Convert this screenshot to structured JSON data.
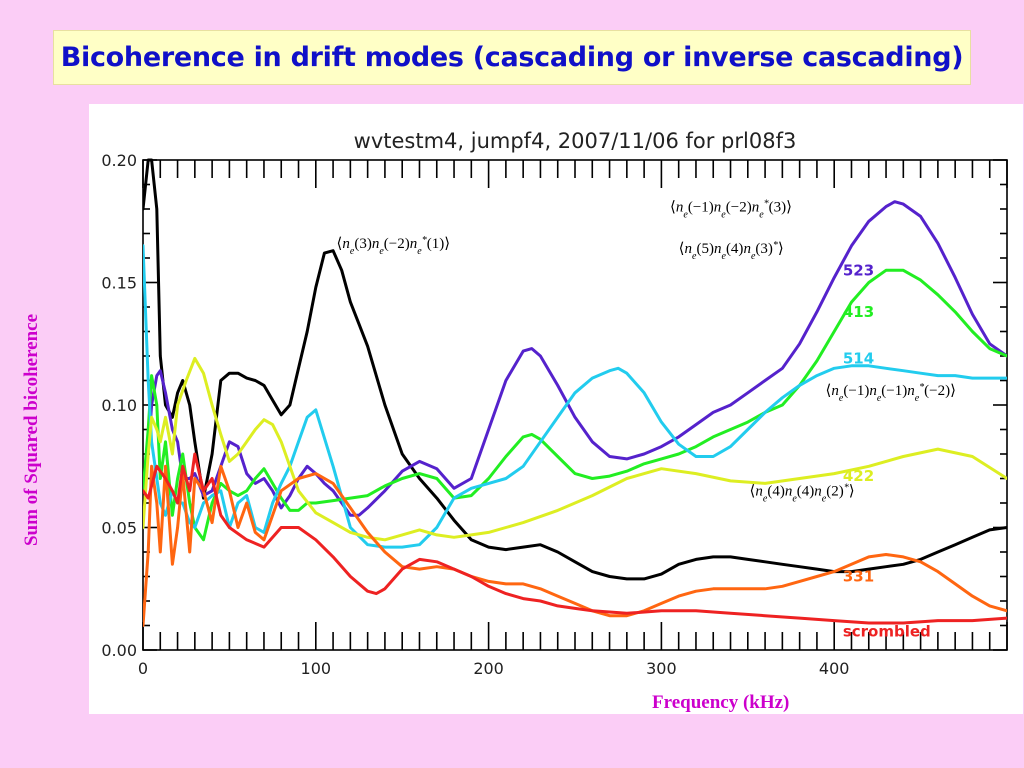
{
  "slide": {
    "title": "Bicoherence in drift modes (cascading or inverse cascading)",
    "ylabel": "Sum of Squared bicoherence",
    "xlabel": "Frequency (kHz)"
  },
  "chart_data": {
    "type": "line",
    "title": "wvtestm4, jumpf4, 2007/11/06 for prl08f3",
    "xlim": [
      0,
      500
    ],
    "ylim": [
      0,
      0.2
    ],
    "xticks": [
      "0",
      "100",
      "200",
      "300",
      "400"
    ],
    "yticks": [
      "0.00",
      "0.05",
      "0.10",
      "0.15",
      "0.20"
    ],
    "grid": false,
    "series": [
      {
        "name": "",
        "color": "#000000",
        "x": [
          0,
          3,
          5,
          8,
          10,
          13,
          17,
          20,
          23,
          27,
          30,
          35,
          40,
          45,
          50,
          55,
          60,
          65,
          70,
          75,
          80,
          85,
          90,
          95,
          100,
          105,
          110,
          115,
          120,
          125,
          130,
          140,
          150,
          160,
          170,
          180,
          190,
          200,
          210,
          220,
          230,
          240,
          250,
          260,
          270,
          280,
          290,
          300,
          310,
          320,
          330,
          340,
          350,
          360,
          370,
          380,
          390,
          400,
          410,
          420,
          430,
          440,
          450,
          460,
          470,
          480,
          490,
          500
        ],
        "y": [
          0.18,
          0.2,
          0.2,
          0.18,
          0.12,
          0.1,
          0.095,
          0.105,
          0.11,
          0.1,
          0.085,
          0.062,
          0.08,
          0.11,
          0.113,
          0.113,
          0.111,
          0.11,
          0.108,
          0.102,
          0.096,
          0.1,
          0.115,
          0.13,
          0.148,
          0.162,
          0.163,
          0.155,
          0.142,
          0.133,
          0.124,
          0.1,
          0.08,
          0.07,
          0.062,
          0.053,
          0.045,
          0.042,
          0.041,
          0.042,
          0.043,
          0.04,
          0.036,
          0.032,
          0.03,
          0.029,
          0.029,
          0.031,
          0.035,
          0.037,
          0.038,
          0.038,
          0.037,
          0.036,
          0.035,
          0.034,
          0.033,
          0.032,
          0.032,
          0.033,
          0.034,
          0.035,
          0.037,
          0.04,
          0.043,
          0.046,
          0.049,
          0.05
        ]
      },
      {
        "name": "523",
        "color": "#5522CC",
        "x": [
          0,
          3,
          5,
          8,
          10,
          13,
          17,
          20,
          23,
          27,
          30,
          35,
          40,
          45,
          50,
          55,
          60,
          65,
          70,
          75,
          80,
          85,
          90,
          95,
          100,
          105,
          110,
          115,
          120,
          125,
          130,
          140,
          150,
          160,
          170,
          180,
          190,
          200,
          210,
          220,
          225,
          230,
          240,
          250,
          260,
          270,
          280,
          290,
          300,
          310,
          320,
          330,
          340,
          350,
          360,
          370,
          380,
          390,
          400,
          410,
          420,
          430,
          435,
          440,
          450,
          460,
          470,
          480,
          490,
          500
        ],
        "y": [
          0.065,
          0.08,
          0.1,
          0.112,
          0.114,
          0.105,
          0.09,
          0.085,
          0.07,
          0.07,
          0.072,
          0.063,
          0.065,
          0.075,
          0.085,
          0.083,
          0.072,
          0.068,
          0.07,
          0.065,
          0.058,
          0.063,
          0.07,
          0.075,
          0.072,
          0.068,
          0.065,
          0.06,
          0.055,
          0.055,
          0.058,
          0.065,
          0.073,
          0.077,
          0.074,
          0.066,
          0.07,
          0.09,
          0.11,
          0.122,
          0.123,
          0.12,
          0.108,
          0.095,
          0.085,
          0.079,
          0.078,
          0.08,
          0.083,
          0.087,
          0.092,
          0.097,
          0.1,
          0.105,
          0.11,
          0.115,
          0.125,
          0.138,
          0.152,
          0.165,
          0.175,
          0.181,
          0.183,
          0.182,
          0.177,
          0.166,
          0.152,
          0.137,
          0.125,
          0.12
        ]
      },
      {
        "name": "413",
        "color": "#22EE22",
        "x": [
          0,
          3,
          5,
          8,
          10,
          13,
          17,
          20,
          23,
          27,
          30,
          35,
          40,
          45,
          50,
          55,
          60,
          65,
          70,
          75,
          80,
          85,
          90,
          95,
          100,
          110,
          120,
          130,
          140,
          150,
          160,
          170,
          180,
          190,
          200,
          210,
          220,
          225,
          230,
          240,
          250,
          260,
          270,
          280,
          290,
          300,
          310,
          320,
          330,
          340,
          350,
          360,
          370,
          380,
          390,
          400,
          410,
          420,
          430,
          440,
          450,
          460,
          470,
          480,
          490,
          500
        ],
        "y": [
          0.065,
          0.09,
          0.112,
          0.1,
          0.07,
          0.085,
          0.055,
          0.07,
          0.08,
          0.06,
          0.05,
          0.045,
          0.06,
          0.068,
          0.065,
          0.063,
          0.065,
          0.07,
          0.074,
          0.068,
          0.062,
          0.057,
          0.057,
          0.06,
          0.06,
          0.061,
          0.062,
          0.063,
          0.067,
          0.07,
          0.072,
          0.07,
          0.062,
          0.063,
          0.07,
          0.079,
          0.087,
          0.088,
          0.086,
          0.079,
          0.072,
          0.07,
          0.071,
          0.073,
          0.076,
          0.078,
          0.08,
          0.083,
          0.087,
          0.09,
          0.093,
          0.097,
          0.1,
          0.108,
          0.118,
          0.13,
          0.142,
          0.15,
          0.155,
          0.155,
          0.151,
          0.145,
          0.138,
          0.13,
          0.123,
          0.12
        ]
      },
      {
        "name": "514",
        "color": "#22CCEE",
        "x": [
          0,
          3,
          5,
          8,
          10,
          13,
          17,
          20,
          23,
          27,
          30,
          35,
          40,
          45,
          50,
          55,
          60,
          65,
          70,
          75,
          80,
          85,
          90,
          95,
          100,
          110,
          120,
          130,
          140,
          150,
          160,
          170,
          180,
          190,
          200,
          210,
          220,
          230,
          240,
          250,
          260,
          270,
          275,
          280,
          290,
          300,
          310,
          320,
          330,
          340,
          350,
          360,
          370,
          380,
          390,
          400,
          410,
          420,
          430,
          440,
          450,
          460,
          470,
          480,
          490,
          500
        ],
        "y": [
          0.165,
          0.11,
          0.085,
          0.07,
          0.06,
          0.055,
          0.065,
          0.06,
          0.06,
          0.052,
          0.05,
          0.06,
          0.063,
          0.065,
          0.05,
          0.06,
          0.063,
          0.05,
          0.048,
          0.06,
          0.068,
          0.075,
          0.085,
          0.095,
          0.098,
          0.075,
          0.05,
          0.043,
          0.042,
          0.042,
          0.043,
          0.05,
          0.062,
          0.066,
          0.068,
          0.07,
          0.075,
          0.085,
          0.095,
          0.105,
          0.111,
          0.114,
          0.115,
          0.113,
          0.105,
          0.093,
          0.084,
          0.079,
          0.079,
          0.083,
          0.09,
          0.097,
          0.103,
          0.108,
          0.112,
          0.115,
          0.116,
          0.116,
          0.115,
          0.114,
          0.113,
          0.112,
          0.112,
          0.111,
          0.111,
          0.111
        ]
      },
      {
        "name": "422",
        "color": "#DDEE22",
        "x": [
          0,
          3,
          5,
          8,
          10,
          13,
          17,
          20,
          25,
          30,
          35,
          40,
          45,
          50,
          55,
          60,
          65,
          70,
          75,
          80,
          90,
          100,
          110,
          120,
          130,
          140,
          150,
          160,
          170,
          180,
          190,
          200,
          220,
          240,
          260,
          280,
          300,
          320,
          340,
          360,
          380,
          400,
          420,
          440,
          460,
          480,
          500
        ],
        "y": [
          0.05,
          0.08,
          0.095,
          0.09,
          0.085,
          0.095,
          0.08,
          0.1,
          0.11,
          0.119,
          0.113,
          0.1,
          0.088,
          0.077,
          0.08,
          0.085,
          0.09,
          0.094,
          0.092,
          0.085,
          0.065,
          0.056,
          0.052,
          0.048,
          0.046,
          0.045,
          0.047,
          0.049,
          0.047,
          0.046,
          0.047,
          0.048,
          0.052,
          0.057,
          0.063,
          0.07,
          0.074,
          0.072,
          0.069,
          0.068,
          0.07,
          0.072,
          0.075,
          0.079,
          0.082,
          0.079,
          0.07
        ]
      },
      {
        "name": "331",
        "color": "#FF6611",
        "x": [
          0,
          3,
          5,
          8,
          10,
          13,
          17,
          20,
          23,
          27,
          30,
          35,
          40,
          45,
          50,
          55,
          60,
          65,
          70,
          75,
          80,
          90,
          100,
          110,
          120,
          130,
          140,
          150,
          160,
          170,
          180,
          190,
          200,
          210,
          220,
          230,
          240,
          250,
          260,
          270,
          280,
          290,
          300,
          310,
          320,
          330,
          340,
          350,
          360,
          370,
          380,
          390,
          400,
          410,
          420,
          430,
          440,
          450,
          460,
          470,
          480,
          490,
          500
        ],
        "y": [
          0.01,
          0.04,
          0.075,
          0.06,
          0.04,
          0.075,
          0.035,
          0.05,
          0.072,
          0.04,
          0.07,
          0.065,
          0.052,
          0.075,
          0.065,
          0.05,
          0.06,
          0.048,
          0.045,
          0.055,
          0.065,
          0.07,
          0.072,
          0.068,
          0.058,
          0.048,
          0.04,
          0.034,
          0.033,
          0.034,
          0.033,
          0.03,
          0.028,
          0.027,
          0.027,
          0.025,
          0.022,
          0.019,
          0.016,
          0.014,
          0.014,
          0.016,
          0.019,
          0.022,
          0.024,
          0.025,
          0.025,
          0.025,
          0.025,
          0.026,
          0.028,
          0.03,
          0.032,
          0.035,
          0.038,
          0.039,
          0.038,
          0.036,
          0.032,
          0.027,
          0.022,
          0.018,
          0.016
        ]
      },
      {
        "name": "scrombled",
        "color": "#EE2222",
        "x": [
          0,
          3,
          5,
          8,
          10,
          13,
          17,
          20,
          23,
          27,
          30,
          35,
          40,
          45,
          50,
          60,
          70,
          80,
          90,
          100,
          110,
          120,
          130,
          135,
          140,
          150,
          160,
          170,
          180,
          190,
          200,
          210,
          220,
          230,
          240,
          250,
          260,
          280,
          300,
          320,
          340,
          360,
          380,
          400,
          420,
          440,
          460,
          480,
          500
        ],
        "y": [
          0.065,
          0.062,
          0.067,
          0.075,
          0.073,
          0.07,
          0.065,
          0.06,
          0.075,
          0.065,
          0.08,
          0.065,
          0.07,
          0.055,
          0.05,
          0.045,
          0.042,
          0.05,
          0.05,
          0.045,
          0.038,
          0.03,
          0.024,
          0.023,
          0.025,
          0.033,
          0.037,
          0.036,
          0.033,
          0.03,
          0.026,
          0.023,
          0.021,
          0.02,
          0.018,
          0.017,
          0.016,
          0.015,
          0.016,
          0.016,
          0.015,
          0.014,
          0.013,
          0.012,
          0.011,
          0.011,
          0.012,
          0.012,
          0.013
        ]
      }
    ],
    "series_labels": [
      {
        "text": "523",
        "series": 1,
        "x": 405,
        "y": 0.155
      },
      {
        "text": "413",
        "series": 2,
        "x": 405,
        "y": 0.138
      },
      {
        "text": "514",
        "series": 3,
        "x": 405,
        "y": 0.119
      },
      {
        "text": "422",
        "series": 4,
        "x": 405,
        "y": 0.071
      },
      {
        "text": "331",
        "series": 5,
        "x": 405,
        "y": 0.03
      },
      {
        "text": "scrombled",
        "series": 6,
        "x": 405,
        "y": 0.0075
      }
    ],
    "annotations": [
      {
        "text": "⟨n_e(3)n_e(−2)n_e^*(1)⟩",
        "x": 112,
        "y": 0.164
      },
      {
        "text": "⟨n_e(−1)n_e(−2)n_e^*(3)⟩",
        "x": 305,
        "y": 0.179
      },
      {
        "text": "⟨n_e(5)n_e(4)n_e(3)^*⟩",
        "x": 310,
        "y": 0.162
      },
      {
        "text": "⟨n_e(−1)n_e(−1)n_e^*(−2)⟩",
        "x": 395,
        "y": 0.104
      },
      {
        "text": "⟨n_e(4)n_e(4)n_e(2)^*⟩",
        "x": 351,
        "y": 0.063
      }
    ]
  }
}
